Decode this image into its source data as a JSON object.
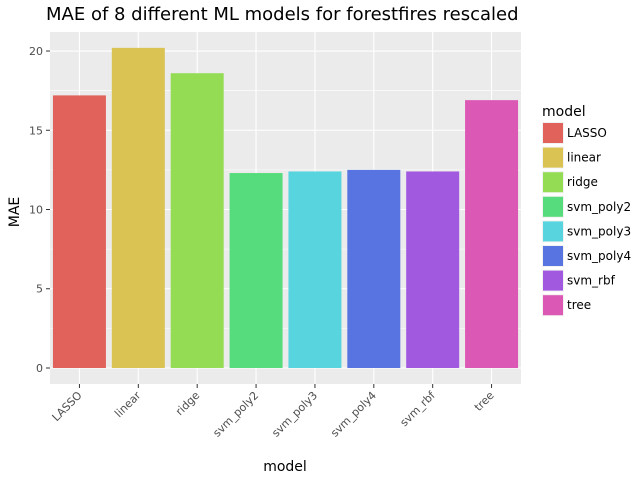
{
  "chart_data": {
    "type": "bar",
    "title": "MAE of 8 different ML models for forestfires rescaled",
    "xlabel": "model",
    "ylabel": "MAE",
    "categories": [
      "LASSO",
      "linear",
      "ridge",
      "svm_poly2",
      "svm_poly3",
      "svm_poly4",
      "svm_rbf",
      "tree"
    ],
    "values": [
      17.2,
      20.2,
      18.6,
      12.3,
      12.4,
      12.5,
      12.4,
      16.9
    ],
    "colors": [
      "#E0625B",
      "#DAC353",
      "#95DC55",
      "#56DC7D",
      "#57D4DD",
      "#5874E0",
      "#A159E0",
      "#DC58B5"
    ],
    "ylim": [
      -1.01,
      21.2
    ],
    "yticks": [
      0,
      5,
      10,
      15,
      20
    ],
    "ytick_labels": [
      "0",
      "5",
      "10",
      "15",
      "20"
    ],
    "grid": true,
    "legend": {
      "title": "model",
      "position": "right",
      "entries": [
        "LASSO",
        "linear",
        "ridge",
        "svm_poly2",
        "svm_poly3",
        "svm_poly4",
        "svm_rbf",
        "tree"
      ]
    }
  }
}
